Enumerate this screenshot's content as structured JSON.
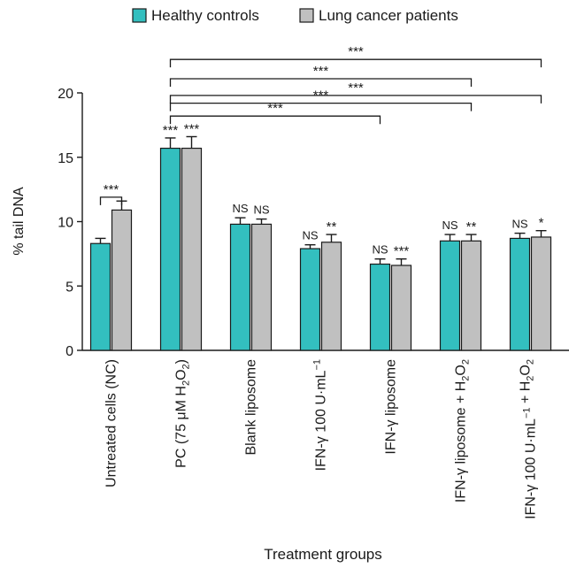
{
  "chart_data": {
    "type": "bar",
    "xlabel": "Treatment groups",
    "ylabel": "% tail DNA",
    "ylim": [
      0,
      20
    ],
    "yticks": [
      0,
      5,
      10,
      15,
      20
    ],
    "legend_position": "top",
    "categories": [
      {
        "main": "Untreated cells (NC)",
        "sub": "",
        "tail": ""
      },
      {
        "main": "PC (75 μM H",
        "sub": "2",
        "tail": "O",
        "sub2": "2",
        "tail2": ")"
      },
      {
        "main": "Blank liposome",
        "sub": "",
        "tail": ""
      },
      {
        "main": "IFN-γ 100 U·mL",
        "sup": "−1",
        "tail": ""
      },
      {
        "main": "IFN-γ liposome",
        "sub": "",
        "tail": ""
      },
      {
        "main": "IFN-γ liposome + H",
        "sub": "2",
        "tail": "O",
        "sub2": "2",
        "tail2": ""
      },
      {
        "main": "IFN-γ 100 U·mL",
        "sup": "−1",
        "tail": " + H",
        "sub": "2",
        "tail2a": "O",
        "sub2": "2"
      }
    ],
    "series": [
      {
        "name": "Healthy controls",
        "color": "#33bfbf",
        "values": [
          8.3,
          15.7,
          9.8,
          7.9,
          6.7,
          8.5,
          8.7
        ],
        "errors": [
          0.4,
          0.8,
          0.5,
          0.3,
          0.4,
          0.5,
          0.4
        ],
        "annotations": [
          "",
          "***",
          "NS",
          "NS",
          "NS",
          "NS",
          "NS"
        ]
      },
      {
        "name": "Lung cancer patients",
        "color": "#c0c0c0",
        "values": [
          10.9,
          15.7,
          9.8,
          8.4,
          6.6,
          8.5,
          8.8
        ],
        "errors": [
          0.7,
          0.9,
          0.4,
          0.6,
          0.5,
          0.5,
          0.5
        ],
        "annotations": [
          "",
          "***",
          "NS",
          "**",
          "***",
          "**",
          "*"
        ]
      }
    ],
    "comparisons": [
      {
        "from_group": 0,
        "to_group": 0,
        "label": "***",
        "level": 11.9,
        "kind": "within"
      },
      {
        "from_group": 1,
        "to_group": 4,
        "label": "***",
        "level": 18.2
      },
      {
        "from_group": 1,
        "to_group": 5,
        "label": "***",
        "level": 19.2,
        "note": "lower"
      },
      {
        "from_group": 1,
        "to_group": 6,
        "label": "***",
        "level": 19.8
      },
      {
        "from_group": 1,
        "to_group": 5,
        "label": "***",
        "level": 21.1
      },
      {
        "from_group": 1,
        "to_group": 6,
        "label": "***",
        "level": 22.6
      }
    ]
  }
}
